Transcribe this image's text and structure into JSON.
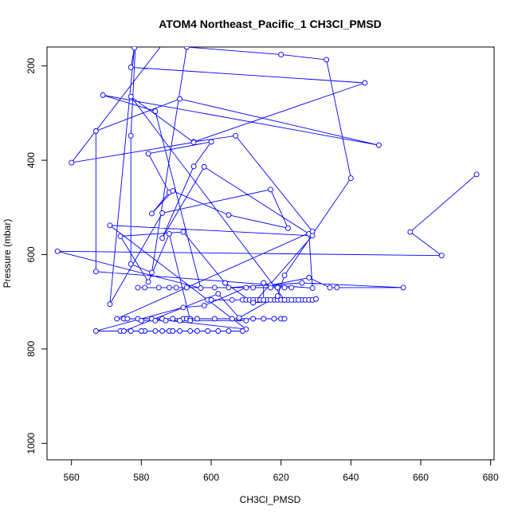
{
  "chart_data": {
    "type": "line",
    "title": "ATOM4 Northeast_Pacific_1 CH3Cl_PMSD",
    "xlabel": "CH3Cl_PMSD",
    "ylabel": "Pressure (mbar)",
    "xlim": [
      553,
      681
    ],
    "ylim": [
      1035,
      160
    ],
    "y_reversed": true,
    "grid": false,
    "xticks": [
      560,
      580,
      600,
      620,
      640,
      660,
      680
    ],
    "yticks": [
      200,
      400,
      600,
      800,
      1000
    ],
    "series": [
      {
        "color": "#0000ff",
        "marker": "open-circle",
        "points": [
          [
            676,
            430
          ],
          [
            657,
            552
          ],
          [
            666,
            602
          ],
          [
            556,
            593
          ],
          [
            597,
            671
          ],
          [
            584,
            296
          ],
          [
            569,
            262
          ],
          [
            648,
            368
          ],
          [
            591,
            270
          ],
          [
            567,
            338
          ],
          [
            567,
            636
          ],
          [
            629,
            671
          ],
          [
            628,
            556
          ],
          [
            598,
            414
          ],
          [
            586,
            565
          ],
          [
            595,
            413
          ],
          [
            600,
            361
          ],
          [
            582,
            386
          ],
          [
            588,
            468
          ],
          [
            583,
            513
          ],
          [
            589,
            465
          ],
          [
            605,
            516
          ],
          [
            622,
            544
          ],
          [
            617,
            462
          ],
          [
            586,
            512
          ],
          [
            571,
            705
          ],
          [
            578,
            162
          ],
          [
            577,
            203
          ],
          [
            644,
            236
          ],
          [
            595,
            361
          ],
          [
            607,
            348
          ],
          [
            629,
            551
          ],
          [
            573,
            736
          ],
          [
            596,
            736
          ],
          [
            615,
            736
          ],
          [
            618,
            736
          ],
          [
            589,
            736
          ],
          [
            586,
            736
          ],
          [
            579,
            736
          ],
          [
            575,
            736
          ],
          [
            576,
            736
          ],
          [
            592,
            736
          ],
          [
            606,
            736
          ],
          [
            608,
            736
          ],
          [
            620,
            736
          ],
          [
            621,
            736
          ],
          [
            612,
            736
          ],
          [
            601,
            736
          ],
          [
            593,
            736
          ],
          [
            594,
            736
          ],
          [
            583,
            736
          ],
          [
            610,
            758
          ],
          [
            571,
            538
          ],
          [
            629,
            560
          ],
          [
            613,
            696
          ],
          [
            629,
            696
          ],
          [
            626,
            696
          ],
          [
            622,
            696
          ],
          [
            609,
            696
          ],
          [
            599,
            696
          ],
          [
            600,
            696
          ],
          [
            616,
            696
          ],
          [
            624,
            696
          ],
          [
            618,
            696
          ],
          [
            619,
            696
          ],
          [
            617,
            696
          ],
          [
            620,
            696
          ],
          [
            627,
            696
          ],
          [
            628,
            696
          ],
          [
            621,
            696
          ],
          [
            610,
            696
          ],
          [
            606,
            696
          ],
          [
            611,
            696
          ],
          [
            612,
            696
          ],
          [
            614,
            696
          ],
          [
            625,
            696
          ],
          [
            623,
            696
          ],
          [
            615,
            696
          ],
          [
            615,
            660
          ],
          [
            617,
            665
          ],
          [
            628,
            649
          ],
          [
            634,
            670
          ],
          [
            636,
            670
          ],
          [
            655,
            670
          ],
          [
            626,
            660
          ],
          [
            605,
            670
          ],
          [
            579,
            670
          ],
          [
            593,
            670
          ],
          [
            590,
            670
          ],
          [
            585,
            670
          ],
          [
            581,
            670
          ],
          [
            588,
            670
          ],
          [
            601,
            670
          ],
          [
            612,
            670
          ],
          [
            619,
            670
          ],
          [
            617,
            670
          ],
          [
            621,
            670
          ],
          [
            623,
            670
          ],
          [
            610,
            670
          ],
          [
            598,
            708
          ],
          [
            592,
            712
          ],
          [
            567,
            762
          ],
          [
            574,
            762
          ],
          [
            577,
            762
          ],
          [
            581,
            762
          ],
          [
            586,
            762
          ],
          [
            588,
            762
          ],
          [
            591,
            762
          ],
          [
            594,
            762
          ],
          [
            599,
            762
          ],
          [
            602,
            762
          ],
          [
            605,
            762
          ],
          [
            609,
            762
          ],
          [
            596,
            762
          ],
          [
            589,
            762
          ],
          [
            584,
            762
          ],
          [
            580,
            762
          ],
          [
            575,
            762
          ],
          [
            602,
            683
          ],
          [
            608,
            734
          ],
          [
            619,
            688
          ],
          [
            621,
            644
          ],
          [
            640,
            438
          ],
          [
            633,
            187
          ],
          [
            620,
            176
          ],
          [
            593,
            160
          ],
          [
            583,
            638
          ],
          [
            577,
            620
          ],
          [
            577,
            348
          ],
          [
            579,
            58
          ],
          [
            601,
            10
          ],
          [
            560,
            405
          ],
          [
            595,
            362
          ],
          [
            577,
            265
          ],
          [
            621,
            696
          ],
          [
            629,
            696
          ],
          [
            630,
            694
          ],
          [
            612,
            702
          ],
          [
            604,
            660
          ],
          [
            592,
            552
          ],
          [
            574,
            561
          ],
          [
            582,
            658
          ],
          [
            588,
            556
          ],
          [
            594,
            740
          ],
          [
            610,
            740
          ],
          [
            580,
            740
          ],
          [
            584,
            740
          ],
          [
            587,
            740
          ],
          [
            591,
            740
          ],
          [
            594,
            740
          ]
        ]
      }
    ]
  }
}
